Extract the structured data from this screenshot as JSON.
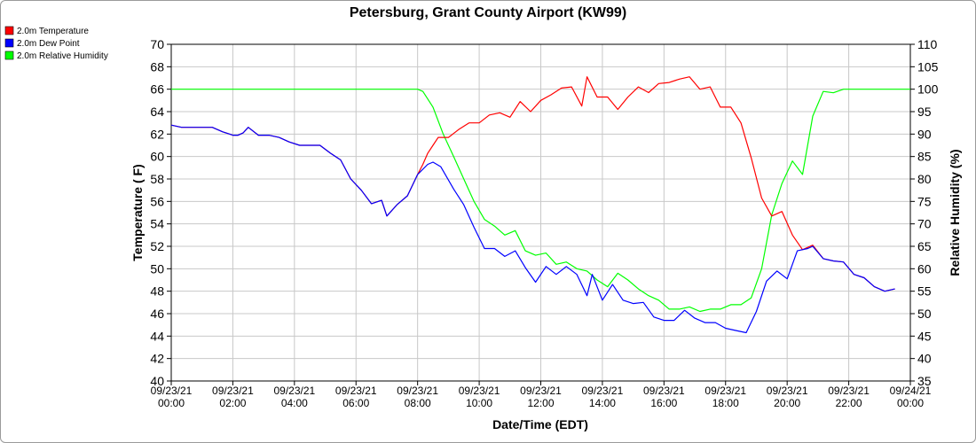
{
  "chart_data": {
    "type": "line",
    "title": "Petersburg, Grant County Airport (KW99)",
    "xlabel": "Date/Time (EDT)",
    "ylabel_left": "Temperature ( F)",
    "ylabel_right": "Relative Humidity (%)",
    "ylim_left": [
      40,
      70
    ],
    "ylim_right": [
      35,
      110
    ],
    "yticks_left": [
      40,
      42,
      44,
      46,
      48,
      50,
      52,
      54,
      56,
      58,
      60,
      62,
      64,
      66,
      68,
      70
    ],
    "yticks_right": [
      35,
      40,
      45,
      50,
      55,
      60,
      65,
      70,
      75,
      80,
      85,
      90,
      95,
      100,
      105,
      110
    ],
    "xlim": [
      0,
      24
    ],
    "xticks": [
      {
        "x": 0,
        "date": "09/23/21",
        "time": "00:00"
      },
      {
        "x": 2,
        "date": "09/23/21",
        "time": "02:00"
      },
      {
        "x": 4,
        "date": "09/23/21",
        "time": "04:00"
      },
      {
        "x": 6,
        "date": "09/23/21",
        "time": "06:00"
      },
      {
        "x": 8,
        "date": "09/23/21",
        "time": "08:00"
      },
      {
        "x": 10,
        "date": "09/23/21",
        "time": "10:00"
      },
      {
        "x": 12,
        "date": "09/23/21",
        "time": "12:00"
      },
      {
        "x": 14,
        "date": "09/23/21",
        "time": "14:00"
      },
      {
        "x": 16,
        "date": "09/23/21",
        "time": "16:00"
      },
      {
        "x": 18,
        "date": "09/23/21",
        "time": "18:00"
      },
      {
        "x": 20,
        "date": "09/23/21",
        "time": "20:00"
      },
      {
        "x": 22,
        "date": "09/23/21",
        "time": "22:00"
      },
      {
        "x": 24,
        "date": "09/24/21",
        "time": "00:00"
      }
    ],
    "grid": true,
    "legend_position": "top-left",
    "series": [
      {
        "name": "2.0m Temperature",
        "axis": "left",
        "color": "#ff0000",
        "points": [
          [
            0.0,
            62.8
          ],
          [
            0.33,
            62.6
          ],
          [
            0.67,
            62.6
          ],
          [
            1.0,
            62.6
          ],
          [
            1.33,
            62.6
          ],
          [
            1.67,
            62.2
          ],
          [
            2.0,
            61.9
          ],
          [
            2.17,
            61.9
          ],
          [
            2.33,
            62.1
          ],
          [
            2.5,
            62.6
          ],
          [
            2.83,
            61.9
          ],
          [
            3.17,
            61.9
          ],
          [
            3.5,
            61.7
          ],
          [
            3.83,
            61.3
          ],
          [
            4.17,
            61.0
          ],
          [
            4.5,
            61.0
          ],
          [
            4.83,
            61.0
          ],
          [
            5.17,
            60.3
          ],
          [
            5.5,
            59.7
          ],
          [
            5.83,
            58.0
          ],
          [
            6.17,
            57.0
          ],
          [
            6.5,
            55.8
          ],
          [
            6.83,
            56.1
          ],
          [
            7.0,
            54.7
          ],
          [
            7.33,
            55.7
          ],
          [
            7.67,
            56.5
          ],
          [
            8.0,
            58.4
          ],
          [
            8.17,
            59.3
          ],
          [
            8.33,
            60.3
          ],
          [
            8.5,
            61.0
          ],
          [
            8.67,
            61.7
          ],
          [
            9.0,
            61.7
          ],
          [
            9.33,
            62.4
          ],
          [
            9.67,
            63.0
          ],
          [
            10.0,
            63.0
          ],
          [
            10.33,
            63.7
          ],
          [
            10.67,
            63.9
          ],
          [
            11.0,
            63.5
          ],
          [
            11.33,
            64.9
          ],
          [
            11.67,
            64.0
          ],
          [
            12.0,
            65.0
          ],
          [
            12.33,
            65.5
          ],
          [
            12.67,
            66.1
          ],
          [
            13.0,
            66.2
          ],
          [
            13.33,
            64.5
          ],
          [
            13.5,
            67.1
          ],
          [
            13.83,
            65.3
          ],
          [
            14.17,
            65.3
          ],
          [
            14.5,
            64.2
          ],
          [
            14.83,
            65.3
          ],
          [
            15.17,
            66.2
          ],
          [
            15.5,
            65.7
          ],
          [
            15.83,
            66.5
          ],
          [
            16.17,
            66.6
          ],
          [
            16.5,
            66.9
          ],
          [
            16.83,
            67.1
          ],
          [
            17.17,
            66.0
          ],
          [
            17.5,
            66.2
          ],
          [
            17.83,
            64.4
          ],
          [
            18.17,
            64.4
          ],
          [
            18.5,
            63.0
          ],
          [
            18.83,
            59.9
          ],
          [
            19.17,
            56.3
          ],
          [
            19.5,
            54.7
          ],
          [
            19.83,
            55.1
          ],
          [
            20.17,
            53.0
          ],
          [
            20.5,
            51.7
          ],
          [
            20.83,
            52.1
          ],
          [
            21.17,
            50.9
          ],
          [
            21.5,
            50.7
          ],
          [
            21.83,
            50.6
          ],
          [
            22.17,
            49.5
          ],
          [
            22.5,
            49.2
          ],
          [
            22.83,
            48.4
          ],
          [
            23.17,
            48.0
          ],
          [
            23.5,
            48.2
          ]
        ]
      },
      {
        "name": "2.0m Dew Point",
        "axis": "left",
        "color": "#0000ff",
        "points": [
          [
            0.0,
            62.8
          ],
          [
            0.33,
            62.6
          ],
          [
            0.67,
            62.6
          ],
          [
            1.0,
            62.6
          ],
          [
            1.33,
            62.6
          ],
          [
            1.67,
            62.2
          ],
          [
            2.0,
            61.9
          ],
          [
            2.17,
            61.9
          ],
          [
            2.33,
            62.1
          ],
          [
            2.5,
            62.6
          ],
          [
            2.83,
            61.9
          ],
          [
            3.17,
            61.9
          ],
          [
            3.5,
            61.7
          ],
          [
            3.83,
            61.3
          ],
          [
            4.17,
            61.0
          ],
          [
            4.5,
            61.0
          ],
          [
            4.83,
            61.0
          ],
          [
            5.17,
            60.3
          ],
          [
            5.5,
            59.7
          ],
          [
            5.83,
            58.0
          ],
          [
            6.17,
            57.0
          ],
          [
            6.5,
            55.8
          ],
          [
            6.83,
            56.1
          ],
          [
            7.0,
            54.7
          ],
          [
            7.33,
            55.7
          ],
          [
            7.67,
            56.5
          ],
          [
            8.0,
            58.4
          ],
          [
            8.33,
            59.3
          ],
          [
            8.5,
            59.5
          ],
          [
            8.75,
            59.1
          ],
          [
            9.17,
            57.1
          ],
          [
            9.5,
            55.7
          ],
          [
            9.83,
            53.7
          ],
          [
            10.17,
            51.8
          ],
          [
            10.5,
            51.8
          ],
          [
            10.83,
            51.1
          ],
          [
            11.17,
            51.6
          ],
          [
            11.5,
            50.1
          ],
          [
            11.83,
            48.8
          ],
          [
            12.17,
            50.2
          ],
          [
            12.5,
            49.5
          ],
          [
            12.83,
            50.2
          ],
          [
            13.17,
            49.5
          ],
          [
            13.5,
            47.6
          ],
          [
            13.67,
            49.5
          ],
          [
            14.0,
            47.2
          ],
          [
            14.33,
            48.6
          ],
          [
            14.67,
            47.2
          ],
          [
            15.0,
            46.9
          ],
          [
            15.33,
            47.0
          ],
          [
            15.67,
            45.7
          ],
          [
            16.0,
            45.4
          ],
          [
            16.33,
            45.4
          ],
          [
            16.67,
            46.3
          ],
          [
            17.0,
            45.6
          ],
          [
            17.33,
            45.2
          ],
          [
            17.67,
            45.2
          ],
          [
            18.0,
            44.7
          ],
          [
            18.33,
            44.5
          ],
          [
            18.67,
            44.3
          ],
          [
            19.0,
            46.2
          ],
          [
            19.33,
            48.9
          ],
          [
            19.67,
            49.8
          ],
          [
            20.0,
            49.1
          ],
          [
            20.33,
            51.6
          ],
          [
            20.67,
            51.8
          ],
          [
            20.83,
            52.0
          ],
          [
            21.17,
            50.9
          ],
          [
            21.5,
            50.7
          ],
          [
            21.83,
            50.6
          ],
          [
            22.17,
            49.5
          ],
          [
            22.5,
            49.2
          ],
          [
            22.83,
            48.4
          ],
          [
            23.17,
            48.0
          ],
          [
            23.5,
            48.2
          ]
        ]
      },
      {
        "name": "2.0m Relative Humidity",
        "axis": "right",
        "color": "#00ff00",
        "points": [
          [
            0.0,
            100
          ],
          [
            8.0,
            100
          ],
          [
            8.17,
            99.5
          ],
          [
            8.5,
            96
          ],
          [
            8.83,
            90
          ],
          [
            9.17,
            85
          ],
          [
            9.5,
            80
          ],
          [
            9.83,
            75
          ],
          [
            10.17,
            71
          ],
          [
            10.5,
            69.5
          ],
          [
            10.83,
            67.5
          ],
          [
            11.17,
            68.5
          ],
          [
            11.5,
            64
          ],
          [
            11.83,
            63
          ],
          [
            12.17,
            63.5
          ],
          [
            12.5,
            61
          ],
          [
            12.83,
            61.5
          ],
          [
            13.17,
            60
          ],
          [
            13.5,
            59.5
          ],
          [
            13.83,
            57.5
          ],
          [
            14.17,
            56
          ],
          [
            14.5,
            59
          ],
          [
            14.83,
            57.5
          ],
          [
            15.17,
            55.5
          ],
          [
            15.5,
            54
          ],
          [
            15.83,
            53
          ],
          [
            16.17,
            51
          ],
          [
            16.5,
            51
          ],
          [
            16.83,
            51.5
          ],
          [
            17.17,
            50.5
          ],
          [
            17.5,
            51
          ],
          [
            17.83,
            51
          ],
          [
            18.17,
            52
          ],
          [
            18.5,
            52
          ],
          [
            18.83,
            53.5
          ],
          [
            19.17,
            60
          ],
          [
            19.5,
            72
          ],
          [
            19.83,
            79
          ],
          [
            20.17,
            84
          ],
          [
            20.5,
            81
          ],
          [
            20.83,
            94
          ],
          [
            21.17,
            99.5
          ],
          [
            21.5,
            99.2
          ],
          [
            21.83,
            100
          ],
          [
            23.5,
            100
          ],
          [
            24.0,
            100
          ]
        ]
      }
    ]
  }
}
